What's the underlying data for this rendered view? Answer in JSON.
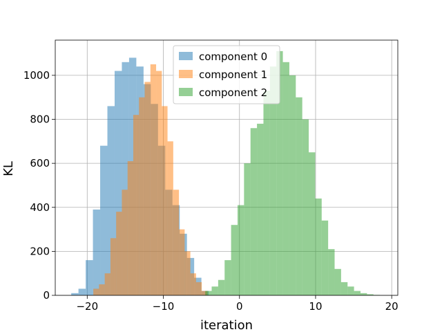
{
  "chart_data": {
    "type": "bar",
    "histogram": true,
    "xlabel": "iteration",
    "ylabel": "KL",
    "xlim": [
      -24.2,
      20.8
    ],
    "ylim": [
      0,
      1160
    ],
    "grid": true,
    "legend_position": "top-center",
    "xticks": [
      -20,
      -10,
      0,
      10,
      20
    ],
    "yticks": [
      0,
      200,
      400,
      600,
      800,
      1000
    ],
    "series": [
      {
        "name": "component 0",
        "color": "#1f77b4",
        "alpha": 0.5,
        "bin_edges": [
          -22.1,
          -21.15,
          -20.2,
          -19.25,
          -18.3,
          -17.35,
          -16.4,
          -15.45,
          -14.5,
          -13.55,
          -12.6,
          -11.65,
          -10.7,
          -9.75,
          -8.8,
          -7.85,
          -6.9,
          -5.95,
          -5.0,
          -4.05
        ],
        "counts": [
          10,
          30,
          160,
          390,
          680,
          860,
          1020,
          1060,
          1080,
          1040,
          960,
          870,
          680,
          480,
          410,
          280,
          170,
          80,
          20
        ]
      },
      {
        "name": "component 1",
        "color": "#ff7f0e",
        "alpha": 0.5,
        "bin_edges": [
          -19.2,
          -18.45,
          -17.7,
          -16.95,
          -16.2,
          -15.45,
          -14.7,
          -13.95,
          -13.2,
          -12.45,
          -11.7,
          -10.95,
          -10.2,
          -9.45,
          -8.7,
          -7.95,
          -7.2,
          -6.45,
          -5.7,
          -4.95,
          -4.2
        ],
        "counts": [
          30,
          50,
          100,
          260,
          380,
          480,
          610,
          820,
          900,
          970,
          1050,
          1020,
          860,
          700,
          480,
          300,
          200,
          100,
          60,
          20
        ]
      },
      {
        "name": "component 2",
        "color": "#2ca02c",
        "alpha": 0.5,
        "bin_edges": [
          -4.5,
          -3.65,
          -2.8,
          -1.95,
          -1.1,
          -0.25,
          0.6,
          1.45,
          2.3,
          3.15,
          4.0,
          4.85,
          5.7,
          6.55,
          7.4,
          8.25,
          9.1,
          9.95,
          10.8,
          11.65,
          12.5,
          13.35,
          14.2,
          15.05,
          15.9,
          16.75,
          17.6,
          18.45
        ],
        "counts": [
          20,
          40,
          70,
          160,
          320,
          410,
          600,
          760,
          780,
          930,
          1040,
          1110,
          1060,
          1000,
          900,
          800,
          650,
          440,
          340,
          210,
          120,
          60,
          40,
          20,
          10,
          5,
          2
        ]
      }
    ]
  }
}
